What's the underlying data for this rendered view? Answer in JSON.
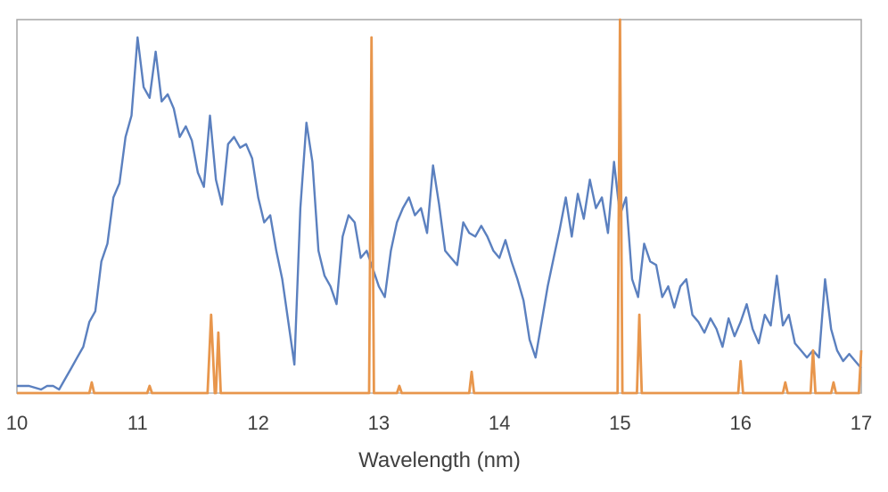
{
  "chart_data": {
    "type": "line",
    "title": "",
    "xlabel": "Wavelength (nm)",
    "ylabel": "",
    "xlim": [
      10,
      17
    ],
    "ylim": [
      0,
      1.05
    ],
    "grid": false,
    "legend": "none",
    "x_ticks": [
      10,
      11,
      12,
      13,
      14,
      15,
      16,
      17
    ],
    "x_tick_labels": [
      "10",
      "11",
      "12",
      "13",
      "14",
      "15",
      "16",
      "17"
    ],
    "colors": {
      "series_blue": "#5b80bf",
      "series_orange": "#e8964c",
      "frame": "#a6a6a6",
      "text": "#404040"
    },
    "series": [
      {
        "color": "#5b80bf",
        "points": [
          [
            10.0,
            0.02
          ],
          [
            10.1,
            0.02
          ],
          [
            10.2,
            0.01
          ],
          [
            10.25,
            0.02
          ],
          [
            10.3,
            0.02
          ],
          [
            10.35,
            0.01
          ],
          [
            10.4,
            0.04
          ],
          [
            10.45,
            0.07
          ],
          [
            10.5,
            0.1
          ],
          [
            10.55,
            0.13
          ],
          [
            10.6,
            0.2
          ],
          [
            10.65,
            0.23
          ],
          [
            10.7,
            0.37
          ],
          [
            10.75,
            0.42
          ],
          [
            10.8,
            0.55
          ],
          [
            10.85,
            0.59
          ],
          [
            10.9,
            0.72
          ],
          [
            10.95,
            0.78
          ],
          [
            11.0,
            1.0
          ],
          [
            11.05,
            0.86
          ],
          [
            11.1,
            0.83
          ],
          [
            11.15,
            0.96
          ],
          [
            11.2,
            0.82
          ],
          [
            11.25,
            0.84
          ],
          [
            11.3,
            0.8
          ],
          [
            11.35,
            0.72
          ],
          [
            11.4,
            0.75
          ],
          [
            11.45,
            0.71
          ],
          [
            11.5,
            0.62
          ],
          [
            11.55,
            0.58
          ],
          [
            11.6,
            0.78
          ],
          [
            11.65,
            0.6
          ],
          [
            11.7,
            0.53
          ],
          [
            11.75,
            0.7
          ],
          [
            11.8,
            0.72
          ],
          [
            11.85,
            0.69
          ],
          [
            11.9,
            0.7
          ],
          [
            11.95,
            0.66
          ],
          [
            12.0,
            0.55
          ],
          [
            12.05,
            0.48
          ],
          [
            12.1,
            0.5
          ],
          [
            12.15,
            0.4
          ],
          [
            12.2,
            0.32
          ],
          [
            12.25,
            0.2
          ],
          [
            12.3,
            0.08
          ],
          [
            12.35,
            0.52
          ],
          [
            12.4,
            0.76
          ],
          [
            12.45,
            0.65
          ],
          [
            12.5,
            0.4
          ],
          [
            12.55,
            0.33
          ],
          [
            12.6,
            0.3
          ],
          [
            12.65,
            0.25
          ],
          [
            12.7,
            0.44
          ],
          [
            12.75,
            0.5
          ],
          [
            12.8,
            0.48
          ],
          [
            12.85,
            0.38
          ],
          [
            12.9,
            0.4
          ],
          [
            12.95,
            0.35
          ],
          [
            13.0,
            0.3
          ],
          [
            13.05,
            0.27
          ],
          [
            13.1,
            0.4
          ],
          [
            13.15,
            0.48
          ],
          [
            13.2,
            0.52
          ],
          [
            13.25,
            0.55
          ],
          [
            13.3,
            0.5
          ],
          [
            13.35,
            0.52
          ],
          [
            13.4,
            0.45
          ],
          [
            13.45,
            0.64
          ],
          [
            13.5,
            0.53
          ],
          [
            13.55,
            0.4
          ],
          [
            13.6,
            0.38
          ],
          [
            13.65,
            0.36
          ],
          [
            13.7,
            0.48
          ],
          [
            13.75,
            0.45
          ],
          [
            13.8,
            0.44
          ],
          [
            13.85,
            0.47
          ],
          [
            13.9,
            0.44
          ],
          [
            13.95,
            0.4
          ],
          [
            14.0,
            0.38
          ],
          [
            14.05,
            0.43
          ],
          [
            14.1,
            0.37
          ],
          [
            14.15,
            0.32
          ],
          [
            14.2,
            0.26
          ],
          [
            14.25,
            0.15
          ],
          [
            14.3,
            0.1
          ],
          [
            14.35,
            0.2
          ],
          [
            14.4,
            0.3
          ],
          [
            14.45,
            0.38
          ],
          [
            14.5,
            0.46
          ],
          [
            14.55,
            0.55
          ],
          [
            14.6,
            0.44
          ],
          [
            14.65,
            0.56
          ],
          [
            14.7,
            0.49
          ],
          [
            14.75,
            0.6
          ],
          [
            14.8,
            0.52
          ],
          [
            14.85,
            0.55
          ],
          [
            14.9,
            0.45
          ],
          [
            14.95,
            0.65
          ],
          [
            15.0,
            0.5
          ],
          [
            15.05,
            0.55
          ],
          [
            15.1,
            0.32
          ],
          [
            15.15,
            0.27
          ],
          [
            15.2,
            0.42
          ],
          [
            15.25,
            0.37
          ],
          [
            15.3,
            0.36
          ],
          [
            15.35,
            0.27
          ],
          [
            15.4,
            0.3
          ],
          [
            15.45,
            0.24
          ],
          [
            15.5,
            0.3
          ],
          [
            15.55,
            0.32
          ],
          [
            15.6,
            0.22
          ],
          [
            15.65,
            0.2
          ],
          [
            15.7,
            0.17
          ],
          [
            15.75,
            0.21
          ],
          [
            15.8,
            0.18
          ],
          [
            15.85,
            0.13
          ],
          [
            15.9,
            0.21
          ],
          [
            15.95,
            0.16
          ],
          [
            16.0,
            0.2
          ],
          [
            16.05,
            0.25
          ],
          [
            16.1,
            0.18
          ],
          [
            16.15,
            0.14
          ],
          [
            16.2,
            0.22
          ],
          [
            16.25,
            0.19
          ],
          [
            16.3,
            0.33
          ],
          [
            16.35,
            0.19
          ],
          [
            16.4,
            0.22
          ],
          [
            16.45,
            0.14
          ],
          [
            16.5,
            0.12
          ],
          [
            16.55,
            0.1
          ],
          [
            16.6,
            0.12
          ],
          [
            16.65,
            0.1
          ],
          [
            16.7,
            0.32
          ],
          [
            16.75,
            0.18
          ],
          [
            16.8,
            0.12
          ],
          [
            16.85,
            0.09
          ],
          [
            16.9,
            0.11
          ],
          [
            16.95,
            0.09
          ],
          [
            17.0,
            0.07
          ]
        ]
      },
      {
        "color": "#e8964c",
        "points": [
          [
            10.0,
            0.0
          ],
          [
            10.6,
            0.0
          ],
          [
            10.62,
            0.03
          ],
          [
            10.64,
            0.0
          ],
          [
            11.08,
            0.0
          ],
          [
            11.1,
            0.02
          ],
          [
            11.12,
            0.0
          ],
          [
            11.58,
            0.0
          ],
          [
            11.61,
            0.22
          ],
          [
            11.64,
            0.0
          ],
          [
            11.65,
            0.0
          ],
          [
            11.67,
            0.17
          ],
          [
            11.69,
            0.0
          ],
          [
            12.92,
            0.0
          ],
          [
            12.94,
            1.0
          ],
          [
            12.96,
            0.0
          ],
          [
            13.15,
            0.0
          ],
          [
            13.17,
            0.02
          ],
          [
            13.19,
            0.0
          ],
          [
            13.75,
            0.0
          ],
          [
            13.77,
            0.06
          ],
          [
            13.79,
            0.0
          ],
          [
            14.98,
            0.0
          ],
          [
            15.0,
            1.05
          ],
          [
            15.02,
            0.0
          ],
          [
            15.14,
            0.0
          ],
          [
            15.16,
            0.22
          ],
          [
            15.18,
            0.0
          ],
          [
            15.98,
            0.0
          ],
          [
            16.0,
            0.09
          ],
          [
            16.02,
            0.0
          ],
          [
            16.35,
            0.0
          ],
          [
            16.37,
            0.03
          ],
          [
            16.39,
            0.0
          ],
          [
            16.58,
            0.0
          ],
          [
            16.6,
            0.12
          ],
          [
            16.62,
            0.0
          ],
          [
            16.75,
            0.0
          ],
          [
            16.77,
            0.03
          ],
          [
            16.79,
            0.0
          ],
          [
            16.98,
            0.0
          ],
          [
            17.0,
            0.12
          ]
        ]
      }
    ]
  }
}
